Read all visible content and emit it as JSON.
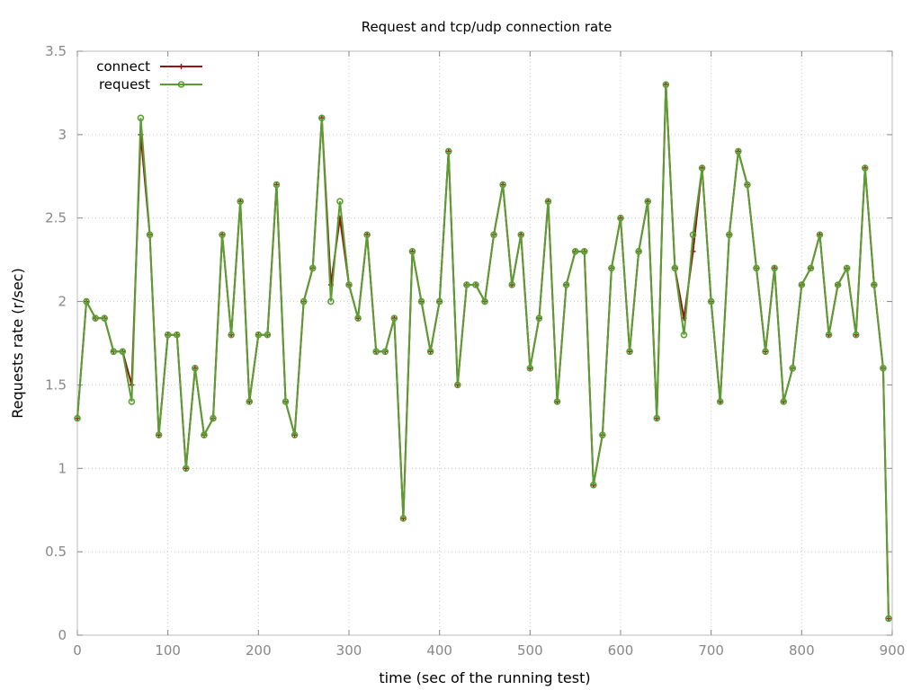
{
  "chart_data": {
    "type": "line",
    "title": "Request and tcp/udp connection rate",
    "xlabel": "time (sec of the running test)",
    "ylabel": "Requests rate (r/sec)",
    "xlim": [
      0,
      900
    ],
    "ylim": [
      0,
      3.5
    ],
    "xticks": [
      "0",
      "100",
      "200",
      "300",
      "400",
      "500",
      "600",
      "700",
      "800",
      "900"
    ],
    "yticks": [
      "0",
      "0.5",
      "1",
      "1.5",
      "2",
      "2.5",
      "3",
      "3.5"
    ],
    "grid": true,
    "legend_position": "top-left",
    "x": [
      0,
      10,
      20,
      30,
      40,
      50,
      60,
      70,
      80,
      90,
      100,
      110,
      120,
      130,
      140,
      150,
      160,
      170,
      180,
      190,
      200,
      210,
      220,
      230,
      240,
      250,
      260,
      270,
      280,
      290,
      300,
      310,
      320,
      330,
      340,
      350,
      360,
      370,
      380,
      390,
      400,
      410,
      420,
      430,
      440,
      450,
      460,
      470,
      480,
      490,
      500,
      510,
      520,
      530,
      540,
      550,
      560,
      570,
      580,
      590,
      600,
      610,
      620,
      630,
      640,
      650,
      660,
      670,
      680,
      690,
      700,
      710,
      720,
      730,
      740,
      750,
      760,
      770,
      780,
      790,
      800,
      810,
      820,
      830,
      840,
      850,
      860,
      870,
      880,
      890,
      896
    ],
    "series": [
      {
        "name": "connect",
        "color": "#8b1a10",
        "marker": "plus",
        "values": [
          1.3,
          2.0,
          1.9,
          1.9,
          1.7,
          1.7,
          1.5,
          3.0,
          2.4,
          1.2,
          1.8,
          1.8,
          1.0,
          1.6,
          1.2,
          1.3,
          2.4,
          1.8,
          2.6,
          1.4,
          1.8,
          1.8,
          2.7,
          1.4,
          1.2,
          2.0,
          2.2,
          3.1,
          2.1,
          2.5,
          2.1,
          1.9,
          2.4,
          1.7,
          1.7,
          1.9,
          0.7,
          2.3,
          2.0,
          1.7,
          2.0,
          2.9,
          1.5,
          2.1,
          2.1,
          2.0,
          2.4,
          2.7,
          2.1,
          2.4,
          1.6,
          1.9,
          2.6,
          1.4,
          2.1,
          2.3,
          2.3,
          0.9,
          1.2,
          2.2,
          2.5,
          1.7,
          2.3,
          2.6,
          1.3,
          3.3,
          2.2,
          1.9,
          2.3,
          2.8,
          2.0,
          1.4,
          2.4,
          2.9,
          2.7,
          2.2,
          1.7,
          2.2,
          1.4,
          1.6,
          2.1,
          2.2,
          2.4,
          1.8,
          2.1,
          2.2,
          1.8,
          2.8,
          2.1,
          1.6,
          0.1
        ]
      },
      {
        "name": "request",
        "color": "#5a9e32",
        "marker": "circle",
        "values": [
          1.3,
          2.0,
          1.9,
          1.9,
          1.7,
          1.7,
          1.4,
          3.1,
          2.4,
          1.2,
          1.8,
          1.8,
          1.0,
          1.6,
          1.2,
          1.3,
          2.4,
          1.8,
          2.6,
          1.4,
          1.8,
          1.8,
          2.7,
          1.4,
          1.2,
          2.0,
          2.2,
          3.1,
          2.0,
          2.6,
          2.1,
          1.9,
          2.4,
          1.7,
          1.7,
          1.9,
          0.7,
          2.3,
          2.0,
          1.7,
          2.0,
          2.9,
          1.5,
          2.1,
          2.1,
          2.0,
          2.4,
          2.7,
          2.1,
          2.4,
          1.6,
          1.9,
          2.6,
          1.4,
          2.1,
          2.3,
          2.3,
          0.9,
          1.2,
          2.2,
          2.5,
          1.7,
          2.3,
          2.6,
          1.3,
          3.3,
          2.2,
          1.8,
          2.4,
          2.8,
          2.0,
          1.4,
          2.4,
          2.9,
          2.7,
          2.2,
          1.7,
          2.2,
          1.4,
          1.6,
          2.1,
          2.2,
          2.4,
          1.8,
          2.1,
          2.2,
          1.8,
          2.8,
          2.1,
          1.6,
          0.1
        ]
      }
    ]
  }
}
